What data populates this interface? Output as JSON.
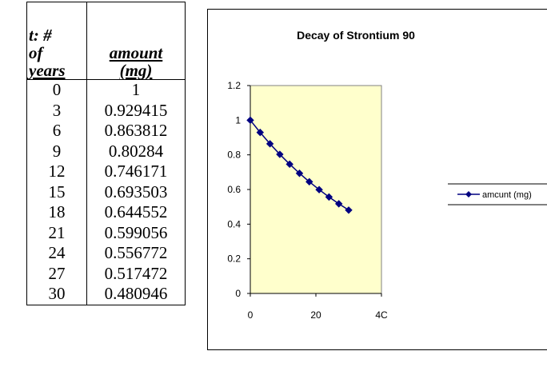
{
  "table": {
    "header_col0_lines": [
      "t: #",
      "of",
      "years"
    ],
    "header_col1_lines": [
      "amount",
      "(mg)"
    ],
    "rows": [
      [
        "0",
        "1"
      ],
      [
        "3",
        "0.929415"
      ],
      [
        "6",
        "0.863812"
      ],
      [
        "9",
        "0.80284"
      ],
      [
        "12",
        "0.746171"
      ],
      [
        "15",
        "0.693503"
      ],
      [
        "18",
        "0.644552"
      ],
      [
        "21",
        "0.599056"
      ],
      [
        "24",
        "0.556772"
      ],
      [
        "27",
        "0.517472"
      ],
      [
        "30",
        "0.480946"
      ]
    ]
  },
  "chart_data": {
    "type": "line",
    "title": "Decay of Strontium 90",
    "xlabel": "",
    "ylabel": "",
    "xlim": [
      0,
      40
    ],
    "ylim": [
      0,
      1.2
    ],
    "x_ticks": [
      "0",
      "20",
      "4C"
    ],
    "y_ticks": [
      "0",
      "0.2",
      "0.4",
      "0.6",
      "0.8",
      "1",
      "1.2"
    ],
    "grid": false,
    "legend_position": "right",
    "plot_background": "#FFFFCC",
    "series_color": "#000080",
    "series": [
      {
        "name": "amcunt (mg)",
        "marker": "diamond",
        "x": [
          0,
          3,
          6,
          9,
          12,
          15,
          18,
          21,
          24,
          27,
          30
        ],
        "values": [
          1,
          0.929415,
          0.863812,
          0.80284,
          0.746171,
          0.693503,
          0.644552,
          0.599056,
          0.556772,
          0.517472,
          0.480946
        ]
      }
    ]
  }
}
